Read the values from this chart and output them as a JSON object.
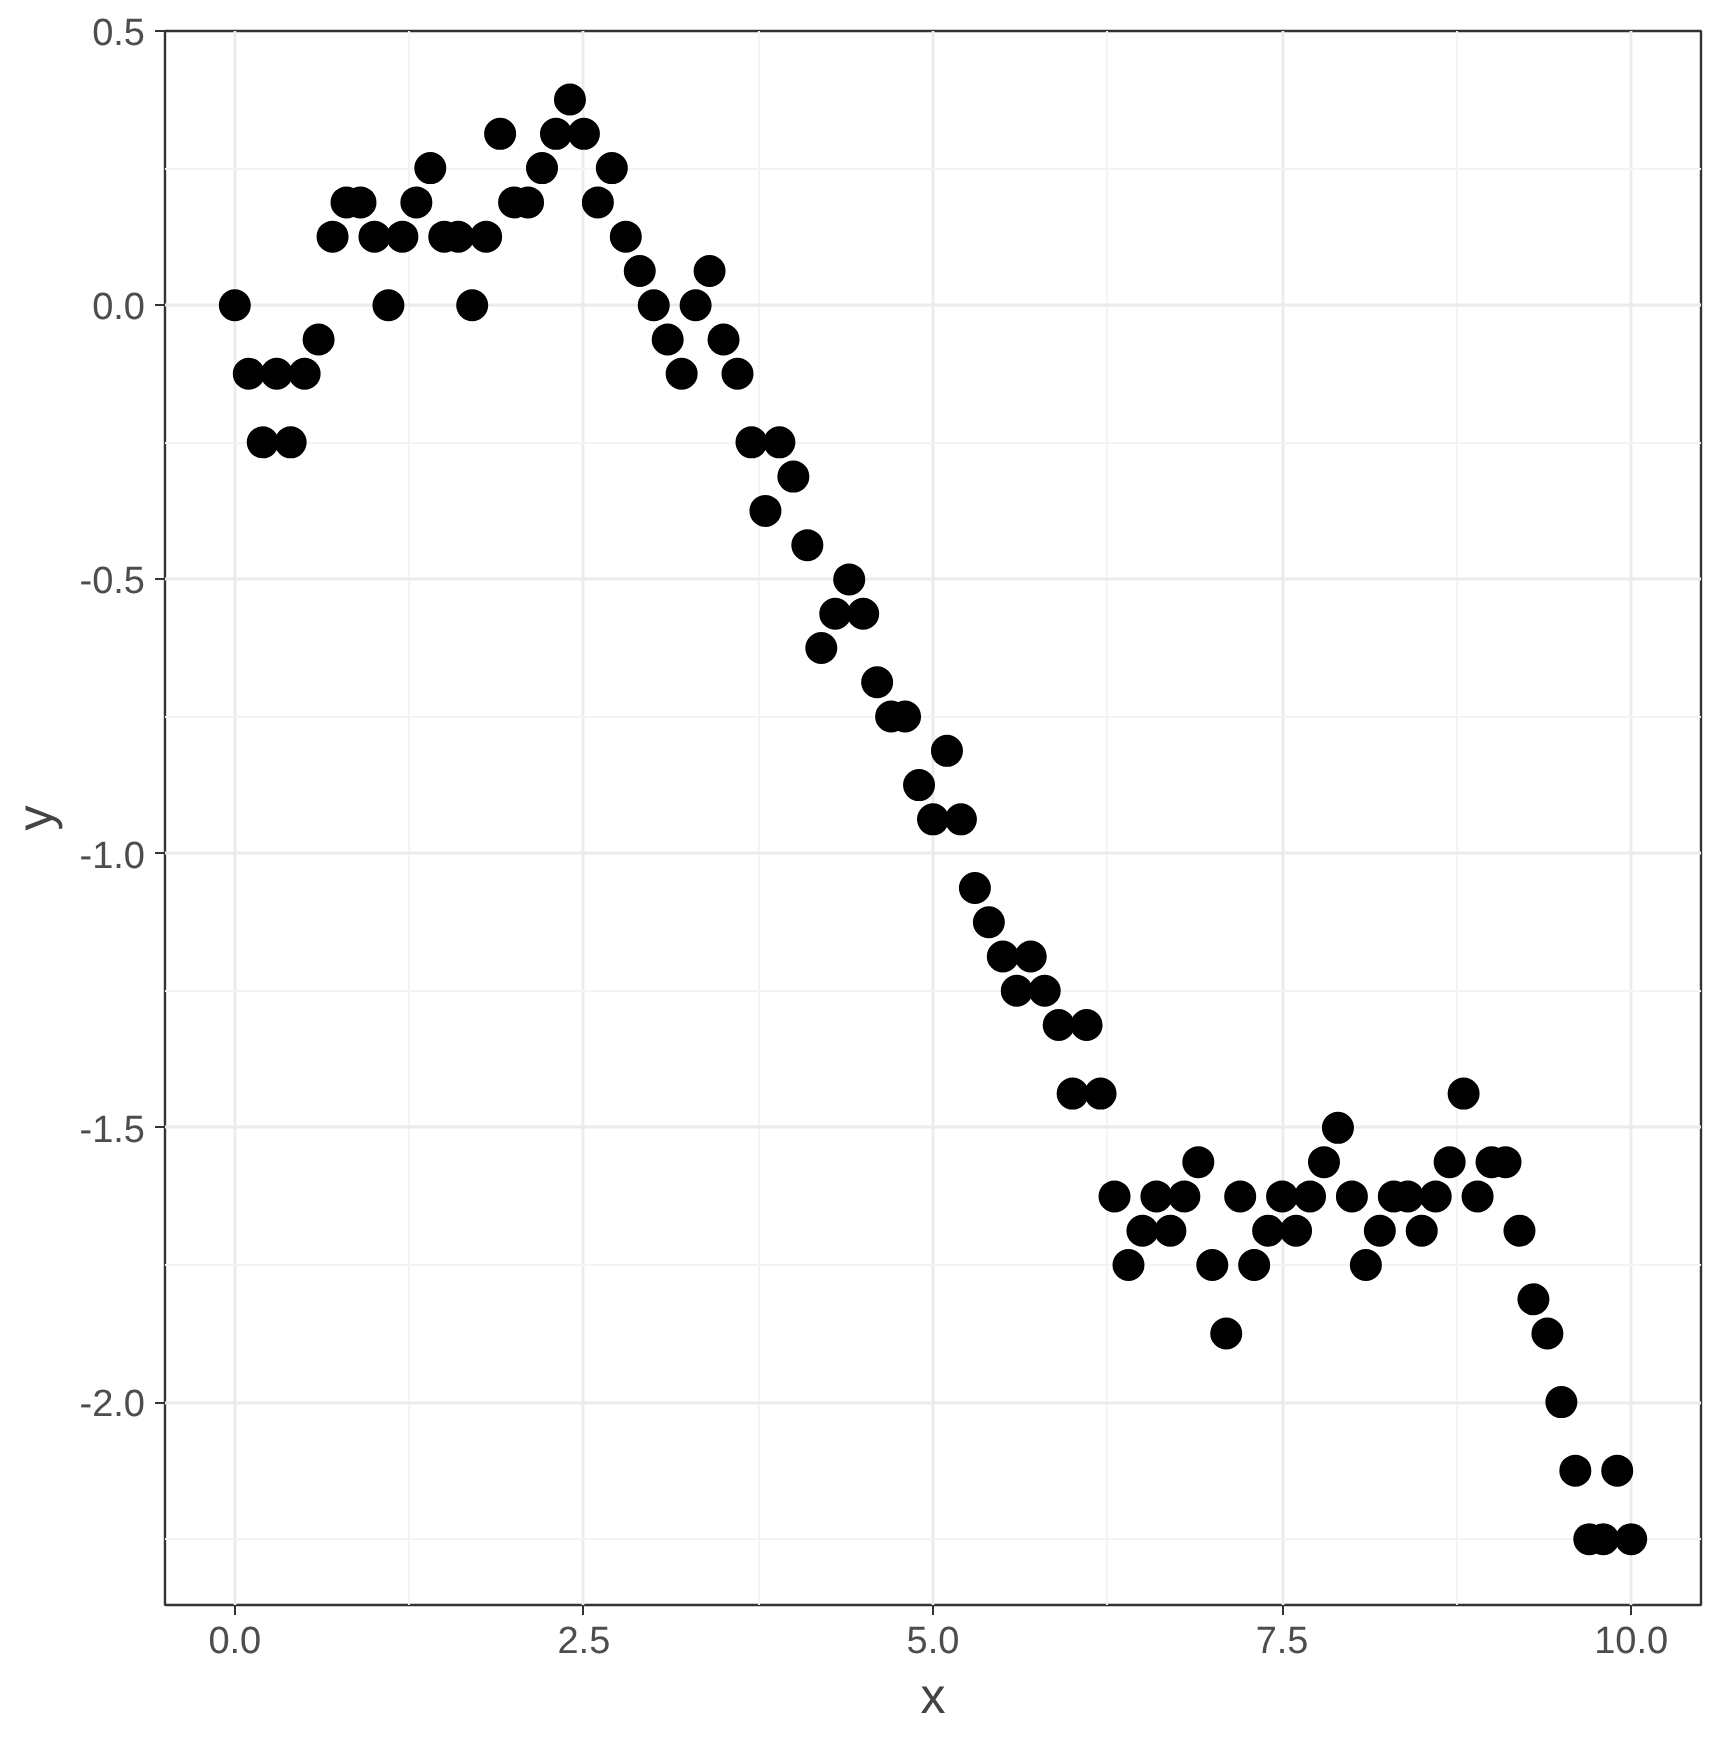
{
  "chart_data": {
    "type": "scatter",
    "xlabel": "x",
    "ylabel": "y",
    "xlim": [
      -0.5,
      10.5
    ],
    "ylim": [
      -2.37,
      0.5
    ],
    "xticks": [
      {
        "value": 0,
        "label": "0.0"
      },
      {
        "value": 2.5,
        "label": "2.5"
      },
      {
        "value": 5,
        "label": "5.0"
      },
      {
        "value": 7.5,
        "label": "7.5"
      },
      {
        "value": 10,
        "label": "10.0"
      }
    ],
    "yticks": [
      {
        "value": -2,
        "label": "-2.0"
      },
      {
        "value": -1.5,
        "label": "-1.5"
      },
      {
        "value": -1,
        "label": "-1.0"
      },
      {
        "value": -0.5,
        "label": "-0.5"
      },
      {
        "value": 0,
        "label": "0.0"
      },
      {
        "value": 0.5,
        "label": "0.5"
      }
    ],
    "grid": true,
    "marker": "circle",
    "x": [
      0,
      0.1,
      0.2,
      0.3,
      0.4,
      0.5,
      0.6,
      0.7,
      0.8,
      0.9,
      1,
      1.1,
      1.2,
      1.3,
      1.4,
      1.5,
      1.6,
      1.7,
      1.8,
      1.9,
      2,
      2.1,
      2.2,
      2.3,
      2.4,
      2.5,
      2.6,
      2.7,
      2.8,
      2.9,
      3,
      3.1,
      3.2,
      3.3,
      3.4,
      3.5,
      3.6,
      3.7,
      3.8,
      3.9,
      4,
      4.1,
      4.2,
      4.3,
      4.4,
      4.5,
      4.6,
      4.7,
      4.8,
      4.9,
      5,
      5.1,
      5.2,
      5.3,
      5.4,
      5.5,
      5.6,
      5.7,
      5.8,
      5.9,
      6,
      6.1,
      6.2,
      6.3,
      6.4,
      6.5,
      6.6,
      6.7,
      6.8,
      6.9,
      7,
      7.1,
      7.2,
      7.3,
      7.4,
      7.5,
      7.6,
      7.7,
      7.8,
      7.9,
      8,
      8.1,
      8.2,
      8.3,
      8.4,
      8.5,
      8.6,
      8.7,
      8.8,
      8.9,
      9,
      9.1,
      9.2,
      9.3,
      9.4,
      9.5,
      9.6,
      9.7,
      9.8,
      9.9,
      10
    ],
    "series": [
      {
        "color": "#000000",
        "values": [
          0,
          -0.125,
          -0.25,
          -0.125,
          -0.25,
          -0.125,
          -0.0625,
          0.125,
          0.1875,
          0.1875,
          0.125,
          0,
          0.125,
          0.1875,
          0.25,
          0.125,
          0.125,
          0,
          0.125,
          0.3125,
          0.1875,
          0.1875,
          0.25,
          0.3125,
          0.375,
          0.3125,
          0.1875,
          0.25,
          0.125,
          0.0625,
          0,
          -0.0625,
          -0.125,
          0,
          0.0625,
          -0.0625,
          -0.125,
          -0.25,
          -0.375,
          -0.25,
          -0.3125,
          -0.4375,
          -0.625,
          -0.5625,
          -0.5,
          -0.5625,
          -0.6875,
          -0.75,
          -0.75,
          -0.875,
          -0.9375,
          -0.8125,
          -0.9375,
          -1.0625,
          -1.125,
          -1.1875,
          -1.25,
          -1.1875,
          -1.25,
          -1.3125,
          -1.4375,
          -1.3125,
          -1.4375,
          -1.625,
          -1.75,
          -1.6875,
          -1.625,
          -1.6875,
          -1.625,
          -1.5625,
          -1.75,
          -1.875,
          -1.625,
          -1.75,
          -1.6875,
          -1.625,
          -1.6875,
          -1.625,
          -1.5625,
          -1.5,
          -1.625,
          -1.75,
          -1.6875,
          -1.625,
          -1.625,
          -1.6875,
          -1.625,
          -1.5625,
          -1.4375,
          -1.625,
          -1.5625,
          -1.5625,
          -1.6875,
          -1.8125,
          -1.875,
          -2,
          -2.125,
          -2.25,
          -2.25,
          -2.125,
          -2.25
        ]
      }
    ]
  }
}
